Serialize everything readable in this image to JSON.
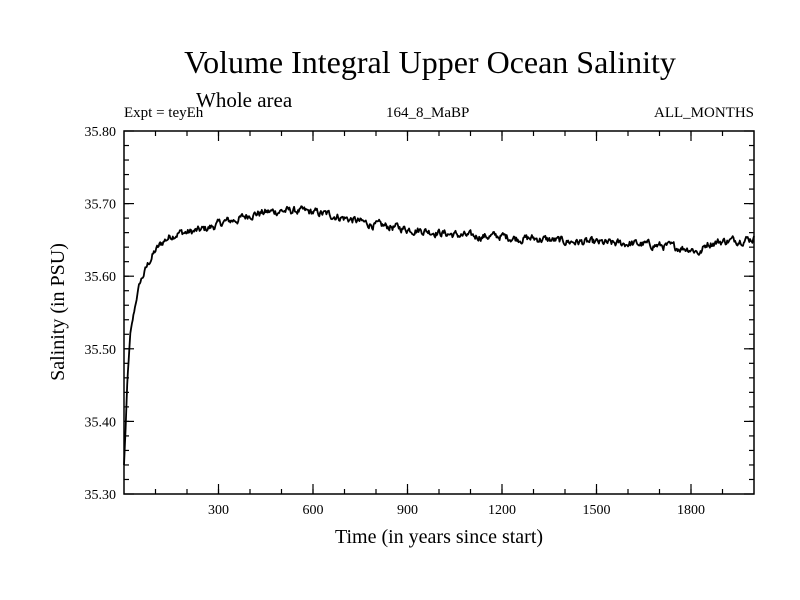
{
  "header": {
    "title": "Volume Integral Upper Ocean Salinity",
    "subtitle": "Whole area",
    "expt": "Expt = teyEh",
    "run_id": "164_8_MaBP",
    "months": "ALL_MONTHS"
  },
  "chart_data": {
    "type": "line",
    "title": "Volume Integral Upper Ocean Salinity",
    "xlabel": "Time (in years since start)",
    "ylabel": "Salinity (in PSU)",
    "xlim": [
      0,
      2000
    ],
    "ylim": [
      35.3,
      35.8
    ],
    "xticks": [
      300,
      600,
      900,
      1200,
      1500,
      1800
    ],
    "yticks": [
      "35.30",
      "35.40",
      "35.50",
      "35.60",
      "35.70",
      "35.80"
    ],
    "series": [
      {
        "name": "Salinity",
        "x": [
          0,
          5,
          10,
          20,
          30,
          40,
          50,
          60,
          80,
          100,
          125,
          150,
          175,
          200,
          240,
          280,
          320,
          360,
          400,
          450,
          500,
          550,
          600,
          650,
          700,
          750,
          800,
          850,
          900,
          950,
          1000,
          1050,
          1100,
          1150,
          1200,
          1250,
          1300,
          1350,
          1400,
          1450,
          1500,
          1550,
          1600,
          1650,
          1700,
          1750,
          1800,
          1830,
          1850,
          1900,
          1950,
          2000
        ],
        "values": [
          35.34,
          35.39,
          35.45,
          35.52,
          35.545,
          35.57,
          35.59,
          35.6,
          35.62,
          35.635,
          35.648,
          35.656,
          35.66,
          35.66,
          35.663,
          35.668,
          35.675,
          35.678,
          35.685,
          35.688,
          35.69,
          35.69,
          35.688,
          35.685,
          35.68,
          35.675,
          35.67,
          35.668,
          35.665,
          35.663,
          35.66,
          35.657,
          35.655,
          35.655,
          35.655,
          35.652,
          35.652,
          35.65,
          35.648,
          35.647,
          35.646,
          35.645,
          35.645,
          35.644,
          35.642,
          35.64,
          35.638,
          35.632,
          35.645,
          35.648,
          35.65,
          35.652
        ]
      }
    ]
  }
}
